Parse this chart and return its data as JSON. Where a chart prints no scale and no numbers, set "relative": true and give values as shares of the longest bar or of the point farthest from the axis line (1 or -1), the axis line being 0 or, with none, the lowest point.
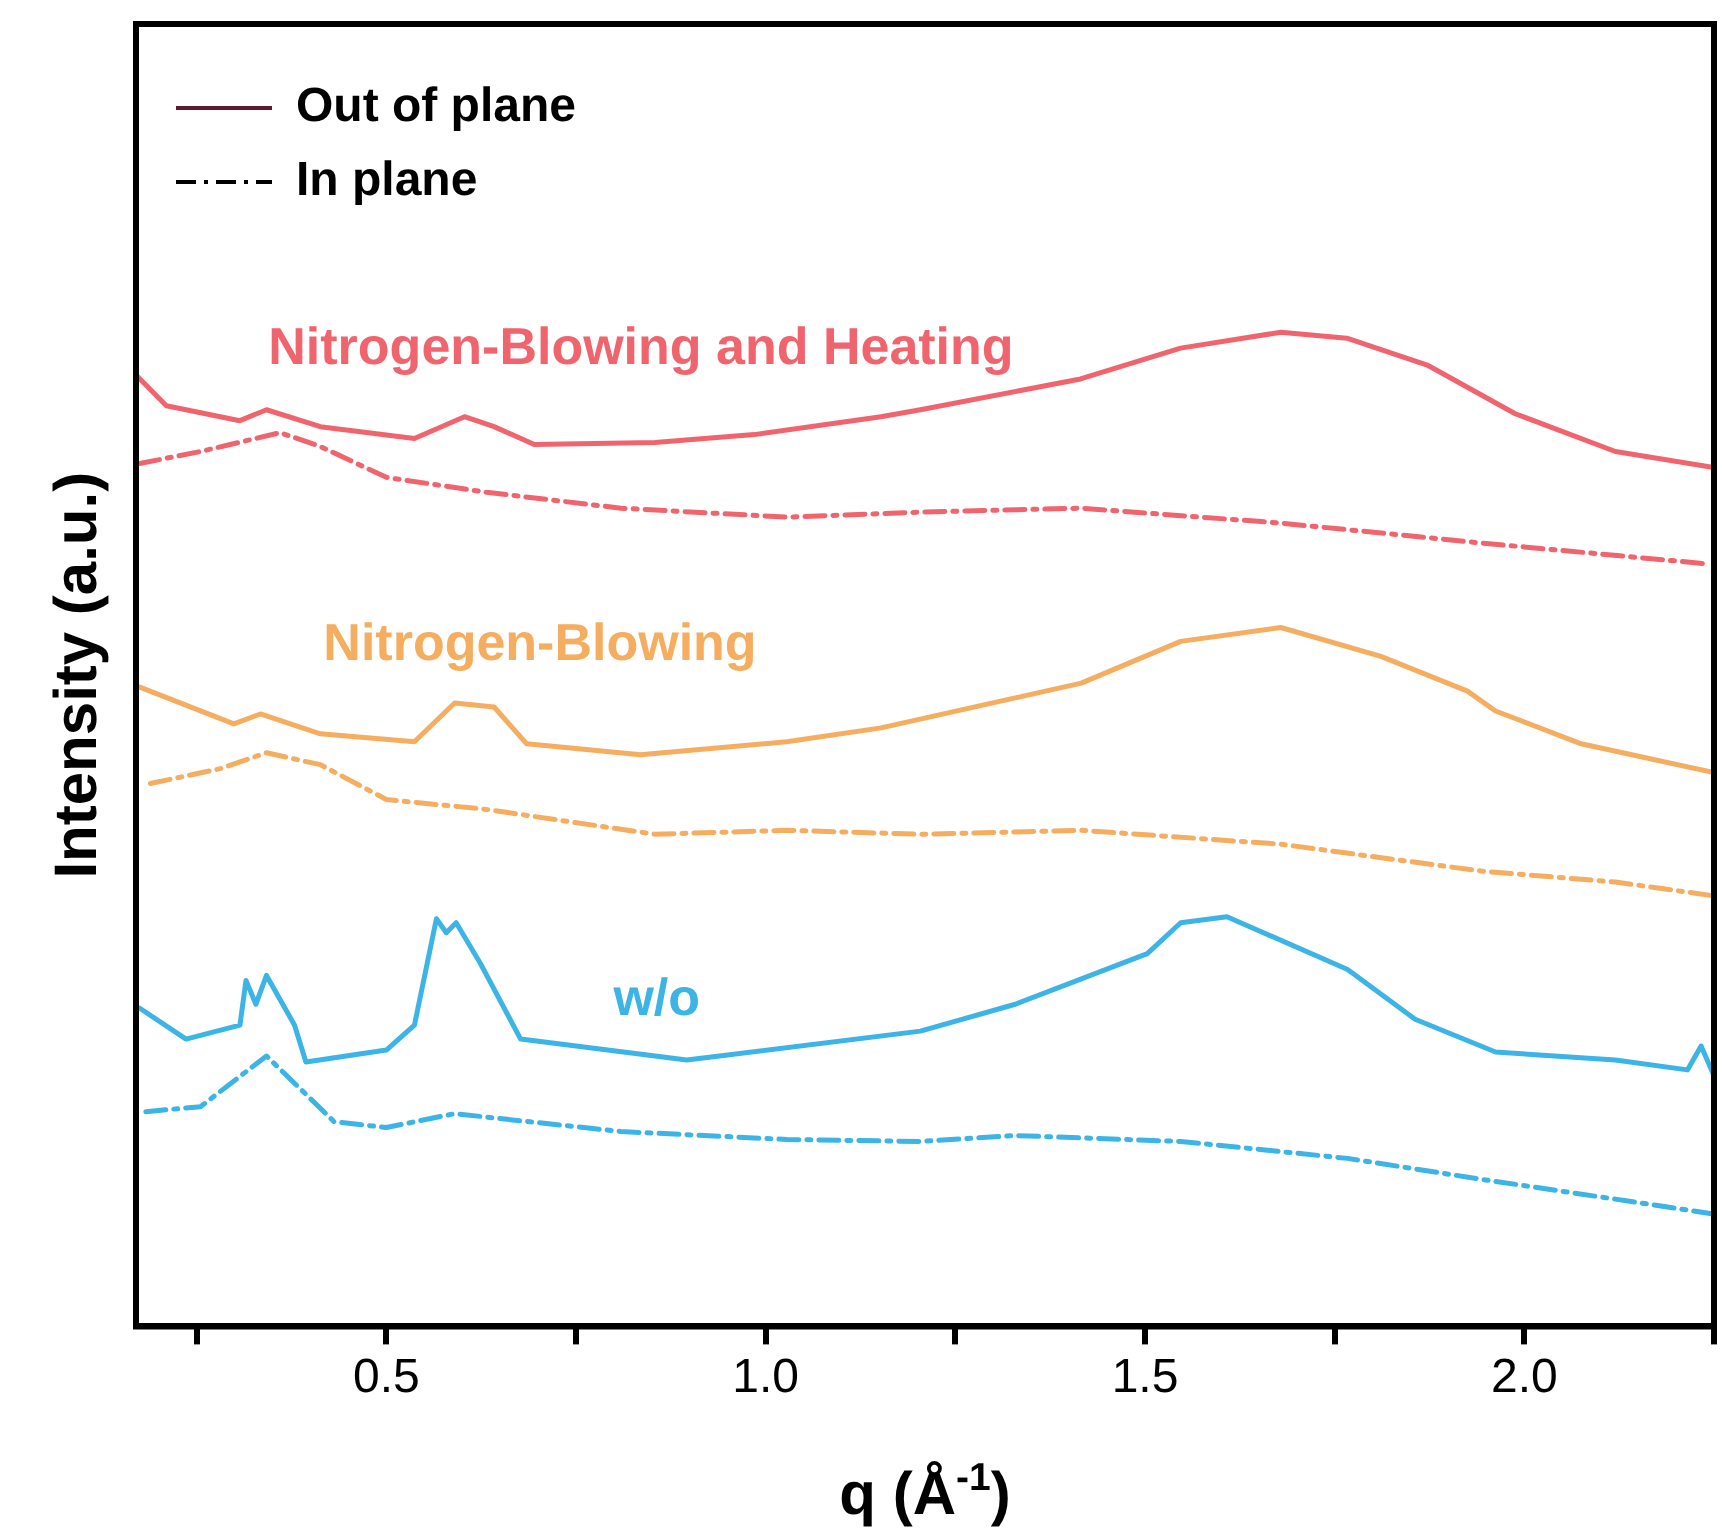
{
  "chart_data": {
    "type": "line",
    "xlabel": "q (Å$^{-1}$)",
    "ylabel": "Intensity (a.u.)",
    "relative": true,
    "xlim": [
      0.17,
      2.25
    ],
    "xticks": [
      {
        "value": 0.25,
        "label": null
      },
      0.5,
      {
        "value": 0.75,
        "label": null
      },
      {
        "value": 1,
        "label": "1.0"
      },
      {
        "value": 1.25,
        "label": null
      },
      1.5,
      {
        "value": 1.75,
        "label": null
      },
      {
        "value": 2,
        "label": "2.0"
      },
      {
        "value": 2.25,
        "label": null
      }
    ],
    "grid": false,
    "legend": "top left",
    "marker": "none",
    "series": [
      {
        "name": "Out of plane",
        "color": "#5c1a2e",
        "line_style": "solid"
      },
      {
        "name": "In plane",
        "color": "#000000",
        "line_style": "dashed"
      },
      {
        "name": "Nitrogen-Blowing and Heating",
        "color": "#f0646e",
        "line_style": "solid",
        "x": [
          0.17,
          0.21,
          0.307,
          0.342,
          0.413,
          0.537,
          0.603,
          0.642,
          0.695,
          0.854,
          0.985,
          1.152,
          1.204,
          1.415,
          1.547,
          1.679,
          1.766,
          1.872,
          1.988,
          2.12,
          2.25
        ],
        "values": [
          0.957,
          0.926,
          0.911,
          0.922,
          0.905,
          0.893,
          0.915,
          0.905,
          0.887,
          0.889,
          0.897,
          0.915,
          0.922,
          0.953,
          0.984,
          1.0,
          0.994,
          0.967,
          0.918,
          0.88,
          0.864
        ]
      },
      {
        "color": "#f0646e",
        "line_style": "dashed",
        "x": [
          0.175,
          0.255,
          0.36,
          0.413,
          0.5,
          0.632,
          0.809,
          1.028,
          1.204,
          1.416,
          1.679,
          1.943,
          2.241
        ],
        "values": [
          0.868,
          0.88,
          0.899,
          0.885,
          0.854,
          0.839,
          0.823,
          0.814,
          0.819,
          0.823,
          0.808,
          0.788,
          0.767
        ]
      },
      {
        "name": "Nitrogen-Blowing",
        "color": "#f5ad5f",
        "line_style": "solid",
        "x": [
          0.175,
          0.299,
          0.334,
          0.413,
          0.537,
          0.59,
          0.642,
          0.685,
          0.835,
          1.028,
          1.152,
          1.416,
          1.547,
          1.679,
          1.811,
          1.925,
          1.962,
          2.075,
          2.25
        ],
        "values": [
          0.643,
          0.606,
          0.616,
          0.596,
          0.588,
          0.627,
          0.623,
          0.586,
          0.575,
          0.588,
          0.602,
          0.647,
          0.689,
          0.703,
          0.674,
          0.639,
          0.619,
          0.586,
          0.557
        ]
      },
      {
        "color": "#f5ad5f",
        "line_style": "dashed",
        "x": [
          0.189,
          0.281,
          0.342,
          0.413,
          0.5,
          0.632,
          0.854,
          1.028,
          1.204,
          1.416,
          1.679,
          1.943,
          2.12,
          2.25
        ],
        "values": [
          0.546,
          0.561,
          0.577,
          0.565,
          0.53,
          0.52,
          0.495,
          0.499,
          0.495,
          0.499,
          0.485,
          0.458,
          0.447,
          0.433
        ]
      },
      {
        "name": "w/o",
        "color": "#3cb4e6",
        "line_style": "solid",
        "x": [
          0.175,
          0.236,
          0.307,
          0.315,
          0.328,
          0.342,
          0.379,
          0.394,
          0.5,
          0.537,
          0.566,
          0.579,
          0.592,
          0.624,
          0.677,
          0.896,
          1.204,
          1.329,
          1.503,
          1.547,
          1.608,
          1.767,
          1.856,
          1.962,
          2.12,
          2.215,
          2.233,
          2.25
        ],
        "values": [
          0.32,
          0.289,
          0.303,
          0.348,
          0.324,
          0.353,
          0.303,
          0.266,
          0.278,
          0.303,
          0.41,
          0.396,
          0.406,
          0.365,
          0.289,
          0.268,
          0.297,
          0.324,
          0.375,
          0.406,
          0.412,
          0.359,
          0.309,
          0.276,
          0.268,
          0.258,
          0.282,
          0.252
        ]
      },
      {
        "color": "#3cb4e6",
        "line_style": "dashed",
        "x": [
          0.183,
          0.255,
          0.342,
          0.431,
          0.5,
          0.59,
          0.809,
          1.028,
          1.204,
          1.329,
          1.547,
          1.767,
          1.943,
          2.12,
          2.25
        ],
        "values": [
          0.216,
          0.221,
          0.272,
          0.206,
          0.2,
          0.214,
          0.196,
          0.188,
          0.186,
          0.192,
          0.186,
          0.169,
          0.148,
          0.128,
          0.113
        ]
      }
    ]
  }
}
